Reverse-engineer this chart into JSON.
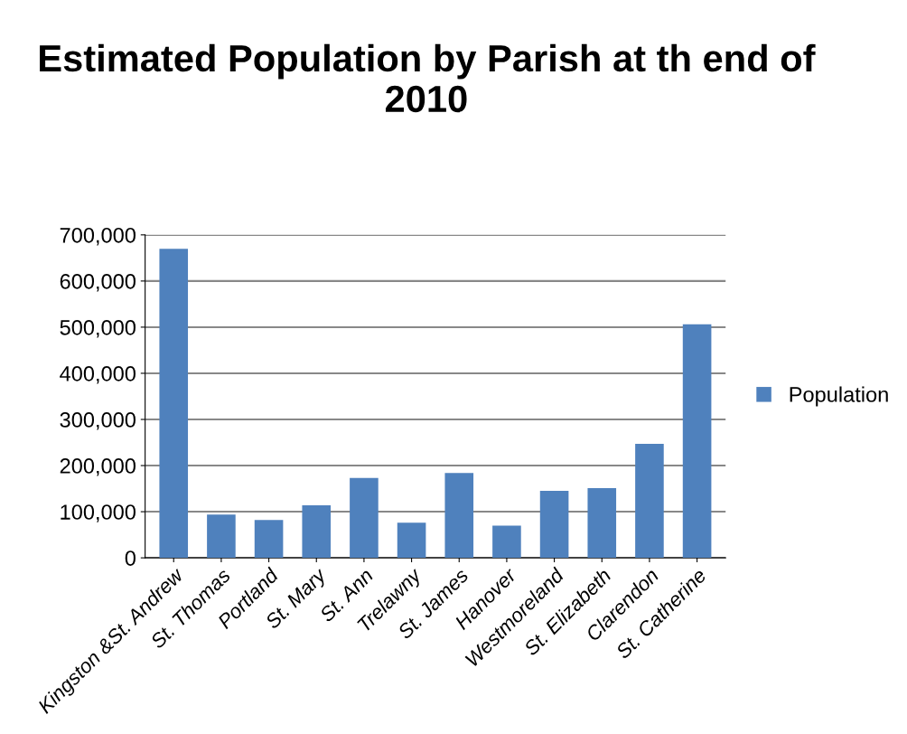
{
  "chart_data": {
    "type": "bar",
    "title": "Estimated Population by Parish at th end of 2010",
    "categories": [
      "Kingston &St. Andrew",
      "St. Thomas",
      "Portland",
      "St. Mary",
      "St. Ann",
      "Trelawny",
      "St. James",
      "Hanover",
      "Westmoreland",
      "St. Elizabeth",
      "Clarendon",
      "St. Catherine"
    ],
    "series": [
      {
        "name": "Population",
        "color": "#4f81bd",
        "values": [
          670000,
          94000,
          82000,
          114000,
          173000,
          76000,
          184000,
          70000,
          145000,
          151000,
          247000,
          506000
        ]
      }
    ],
    "ylim": [
      0,
      700000
    ],
    "yticks": [
      0,
      {
        "value": 100000,
        "label": "100,000"
      },
      {
        "value": 200000,
        "label": "200,000"
      },
      {
        "value": 300000,
        "label": "300,000"
      },
      {
        "value": 400000,
        "label": "400,000"
      },
      {
        "value": 500000,
        "label": "500,000"
      },
      {
        "value": 600000,
        "label": "600,000"
      },
      {
        "value": 700000,
        "label": "700,000"
      }
    ],
    "grid": "y",
    "legend": "right"
  }
}
